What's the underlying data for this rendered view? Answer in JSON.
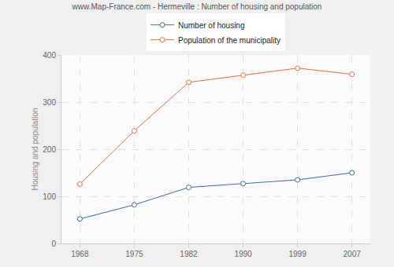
{
  "chart_data": {
    "type": "line",
    "title": "www.Map-France.com - Hermeville : Number of housing and population",
    "y_label": "Housing and population",
    "categories": [
      "1968",
      "1975",
      "1982",
      "1990",
      "1999",
      "2007"
    ],
    "series": [
      {
        "name": "Number of housing",
        "color": "#3d6ca3",
        "values": [
          52,
          82,
          119,
          127,
          135,
          150
        ],
        "marker": "circle",
        "line_style": "solid"
      },
      {
        "name": "Population of the municipality",
        "color": "#e0703e",
        "values": [
          126,
          239,
          342,
          357,
          372,
          359
        ],
        "marker": "circle",
        "line_style": "solid"
      }
    ],
    "ylim": [
      0,
      400
    ],
    "yticks": [
      0,
      100,
      200,
      300,
      400
    ],
    "grid": true,
    "legend": "top"
  }
}
